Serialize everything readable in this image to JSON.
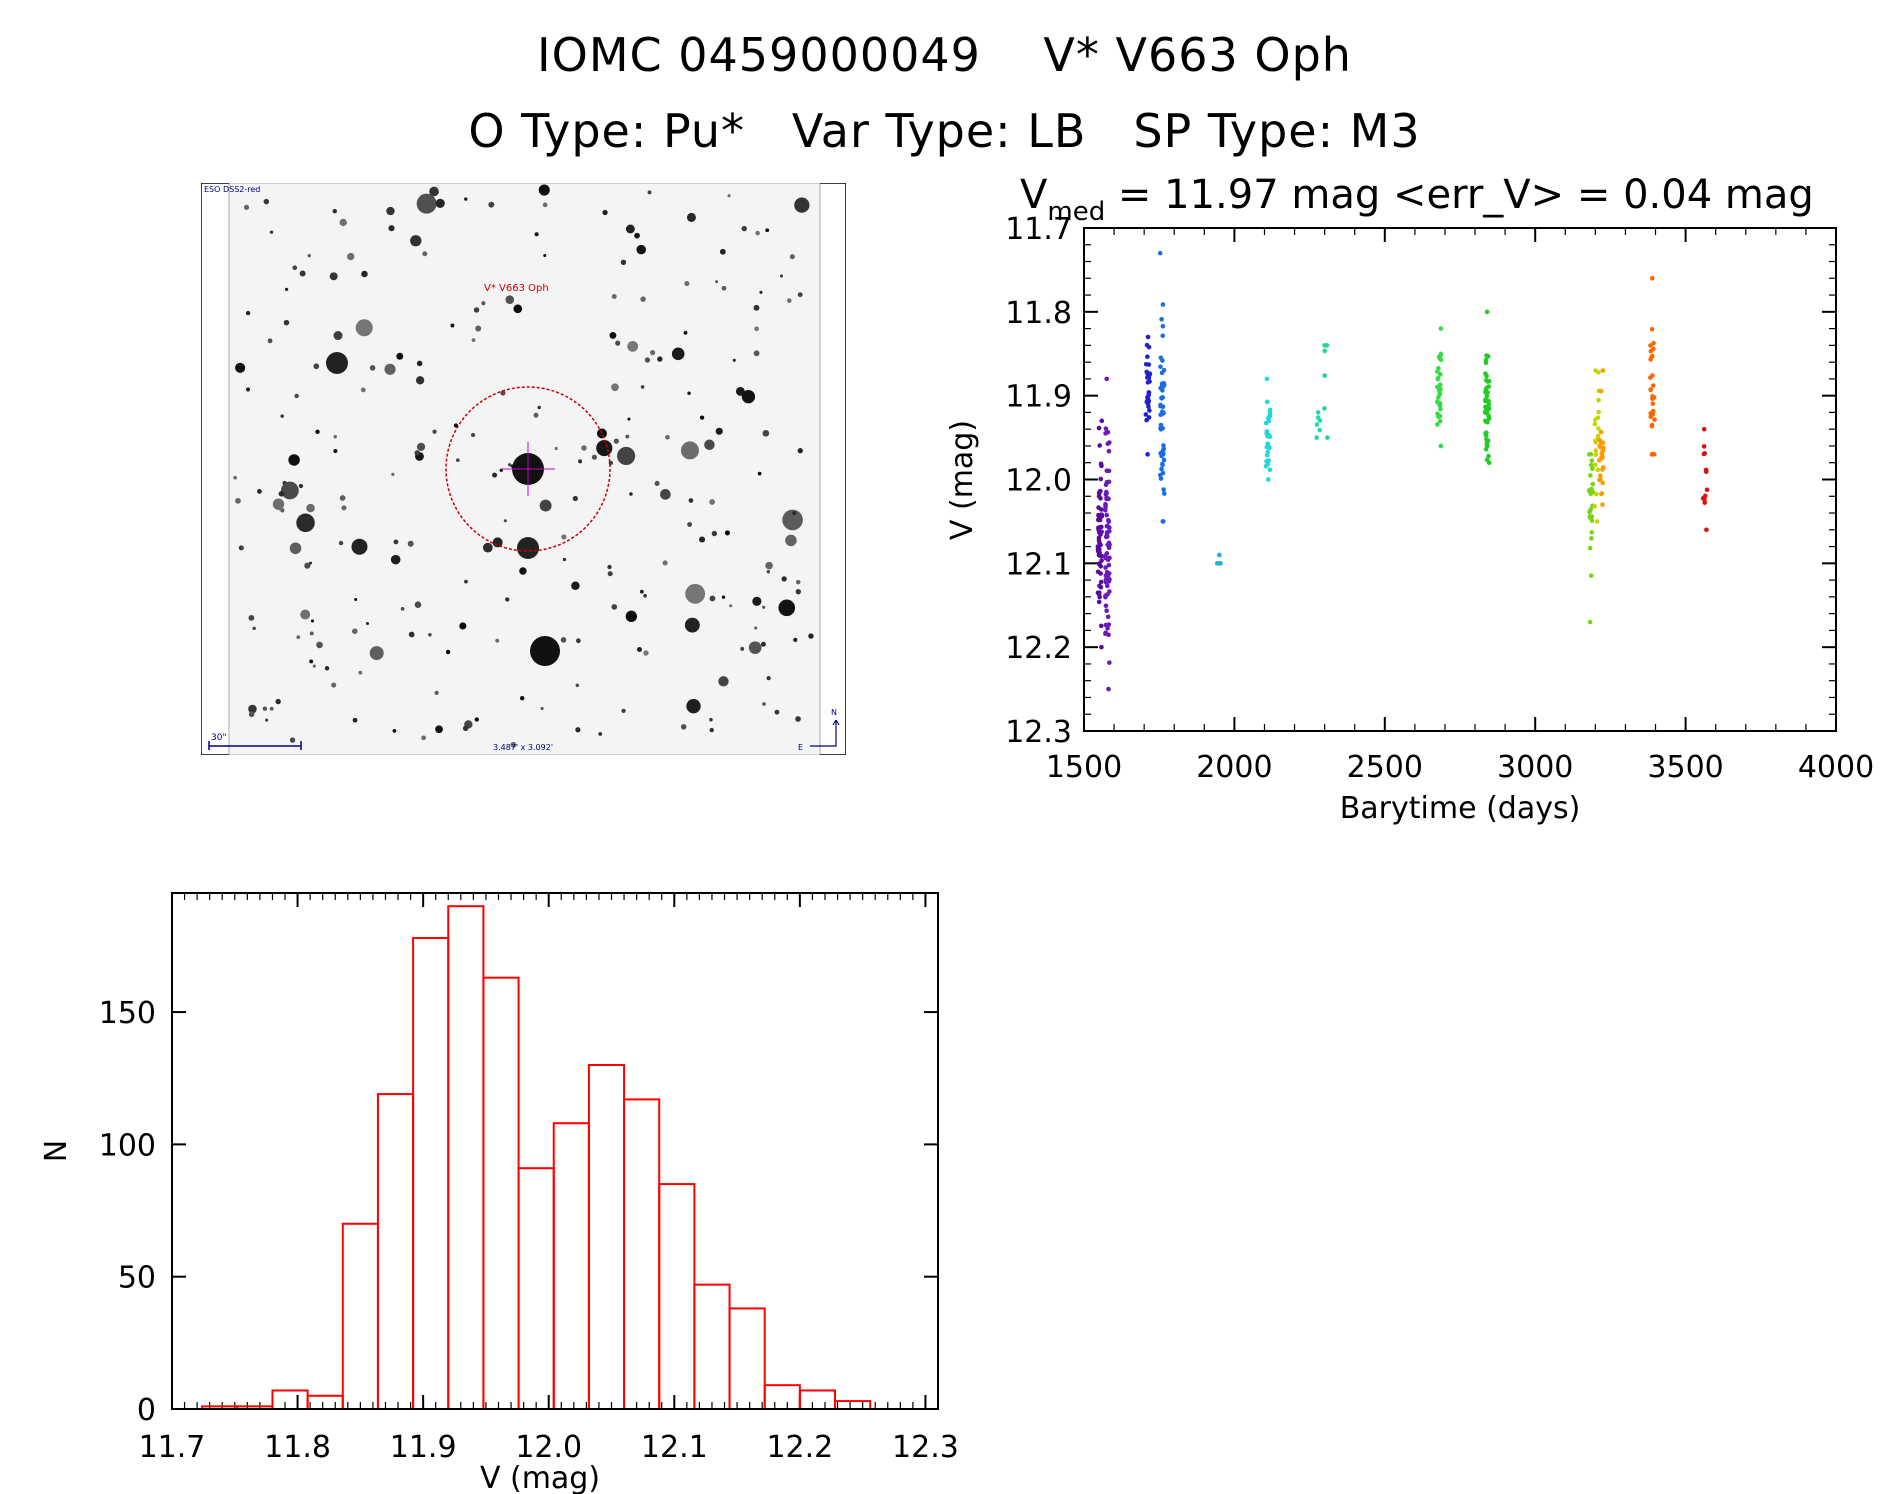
{
  "header": {
    "line1": "IOMC 0459000049    V* V663 Oph",
    "line2": "O Type: Pu*   Var Type: LB   SP Type: M3"
  },
  "finder": {
    "survey_label": "ESO DSS2-red",
    "object_label": "V* V663 Oph",
    "scale_label": "30\"",
    "fov_label": "3.487' x 3.092'",
    "compass_n": "N",
    "compass_e": "E"
  },
  "colors": {
    "histogram": "#ff0000",
    "finder_circle": "#cc0000",
    "finder_label": "#cc0000",
    "finder_annotation": "#000088"
  },
  "chart_data": [
    {
      "type": "scatter",
      "title_main": "V",
      "title_sub": "med",
      "title_rest": " = 11.97 mag <err_V> = 0.04 mag",
      "xlabel": "Barytime (days)",
      "ylabel": "V (mag)",
      "xlim": [
        1500,
        4000
      ],
      "ylim": [
        12.3,
        11.7
      ],
      "xticks": [
        "1500",
        "2000",
        "2500",
        "3000",
        "3500",
        "4000"
      ],
      "yticks": [
        "11.7",
        "11.8",
        "11.9",
        "12.0",
        "12.1",
        "12.2",
        "12.3"
      ],
      "clusters": [
        {
          "x": 1553,
          "ymin": 11.93,
          "ymax": 12.2,
          "center": 12.06,
          "n": 60,
          "color": "#5a0aa0"
        },
        {
          "x": 1578,
          "ymin": 11.88,
          "ymax": 12.25,
          "center": 12.08,
          "n": 70,
          "color": "#6a1ab8"
        },
        {
          "x": 1712,
          "ymin": 11.83,
          "ymax": 11.97,
          "center": 11.89,
          "n": 30,
          "color": "#2222cc"
        },
        {
          "x": 1760,
          "ymin": 11.73,
          "ymax": 12.05,
          "center": 11.93,
          "n": 50,
          "color": "#1a6ee0"
        },
        {
          "x": 1950,
          "ymin": 12.09,
          "ymax": 12.1,
          "center": 12.1,
          "n": 4,
          "color": "#20b0e0"
        },
        {
          "x": 2112,
          "ymin": 11.88,
          "ymax": 12.0,
          "center": 11.95,
          "n": 30,
          "color": "#22d8d8"
        },
        {
          "x": 2280,
          "ymin": 11.92,
          "ymax": 11.95,
          "center": 11.93,
          "n": 6,
          "color": "#22d8b0"
        },
        {
          "x": 2305,
          "ymin": 11.84,
          "ymax": 11.95,
          "center": 11.88,
          "n": 6,
          "color": "#22d890"
        },
        {
          "x": 2680,
          "ymin": 11.82,
          "ymax": 11.96,
          "center": 11.89,
          "n": 30,
          "color": "#33dd44"
        },
        {
          "x": 2840,
          "ymin": 11.8,
          "ymax": 11.98,
          "center": 11.9,
          "n": 50,
          "color": "#22cc22"
        },
        {
          "x": 3185,
          "ymin": 11.97,
          "ymax": 12.17,
          "center": 12.02,
          "n": 25,
          "color": "#7ad414"
        },
        {
          "x": 3205,
          "ymin": 11.87,
          "ymax": 12.05,
          "center": 11.94,
          "n": 20,
          "color": "#c8d400"
        },
        {
          "x": 3220,
          "ymin": 11.87,
          "ymax": 12.03,
          "center": 11.97,
          "n": 25,
          "color": "#ff9900"
        },
        {
          "x": 3390,
          "ymin": 11.76,
          "ymax": 11.97,
          "center": 11.9,
          "n": 30,
          "color": "#ff6600"
        },
        {
          "x": 3565,
          "ymin": 11.94,
          "ymax": 12.06,
          "center": 11.99,
          "n": 12,
          "color": "#dd1111"
        }
      ]
    },
    {
      "type": "bar",
      "subtype": "histogram",
      "xlabel": "V (mag)",
      "ylabel": "N",
      "xlim": [
        11.7,
        12.31
      ],
      "ylim": [
        0,
        195
      ],
      "xticks": [
        "11.7",
        "11.8",
        "11.9",
        "12.0",
        "12.1",
        "12.2",
        "12.3"
      ],
      "yticks": [
        "0",
        "50",
        "100",
        "150"
      ],
      "bin_width": 0.028,
      "bin_starts": [
        11.724,
        11.752,
        11.78,
        11.808,
        11.836,
        11.864,
        11.892,
        11.92,
        11.948,
        11.976,
        12.004,
        12.032,
        12.06,
        12.088,
        12.116,
        12.144,
        12.172,
        12.2,
        12.228
      ],
      "values": [
        1,
        1,
        7,
        5,
        70,
        119,
        178,
        190,
        163,
        91,
        108,
        130,
        117,
        85,
        47,
        38,
        9,
        7,
        3
      ]
    }
  ]
}
